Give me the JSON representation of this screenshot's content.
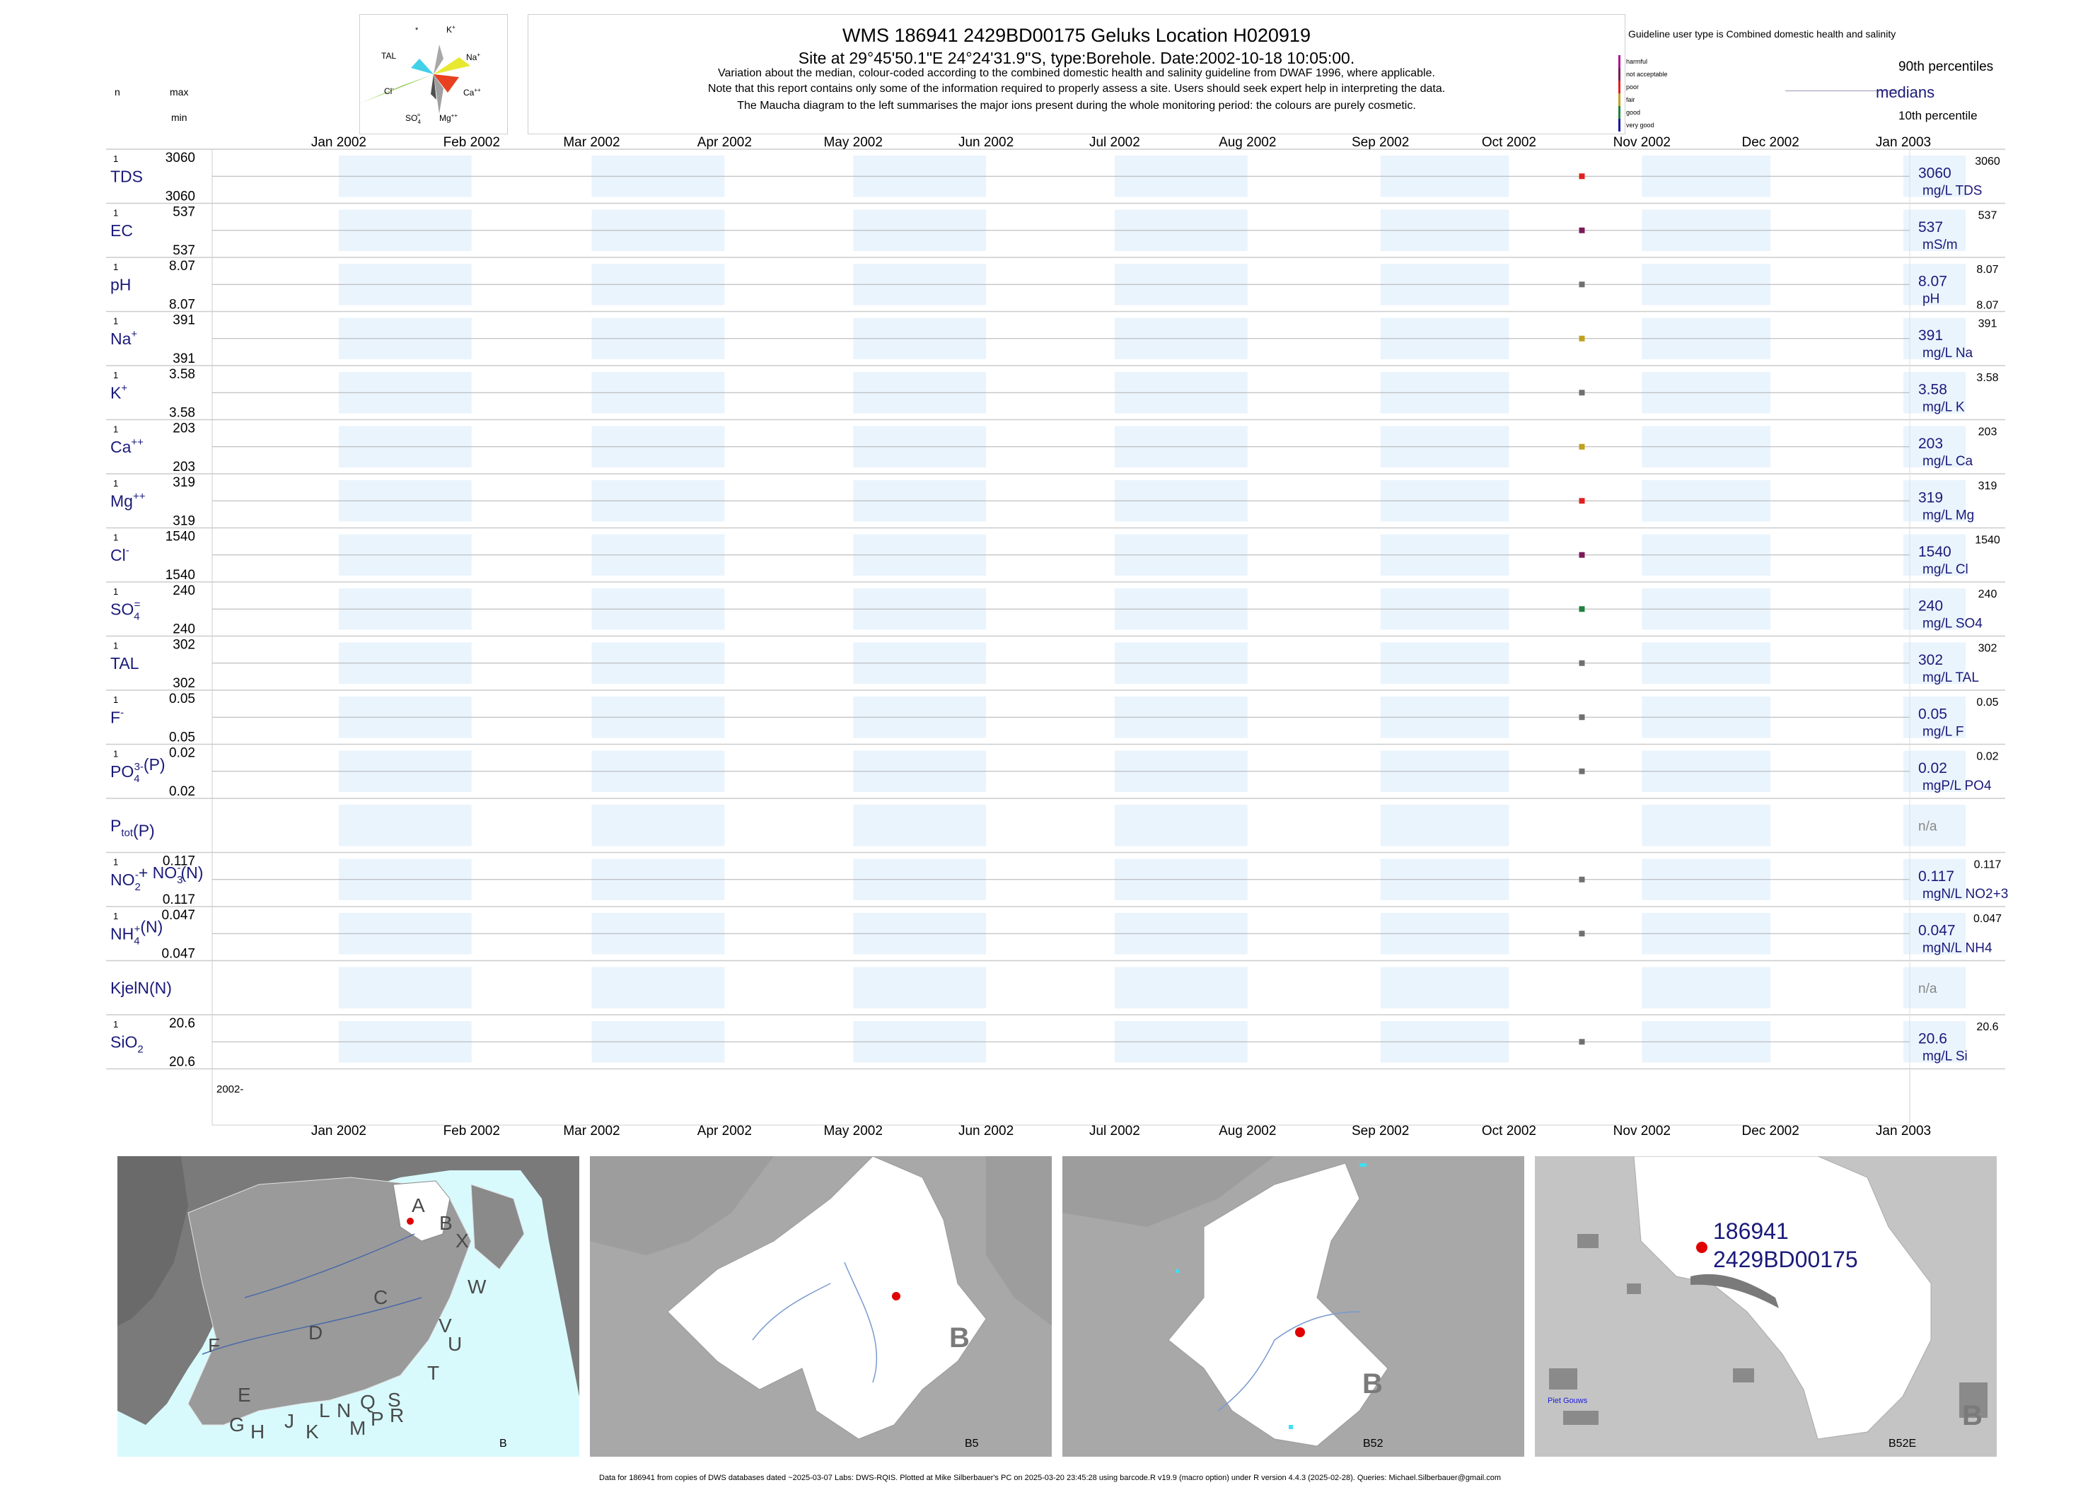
{
  "header": {
    "title": "WMS 186941 2429BD00175 Geluks Location H020919",
    "subtitle": "Site at 29°45'50.1\"E 24°24'31.9\"S, type:Borehole. Date:2002-10-18 10:05:00.",
    "note1": "Variation about the median,  colour-coded according to the combined domestic health and salinity guideline from DWAF 1996, where applicable.",
    "note2": "Note that this report contains only some of the information required to properly assess a site. Users should seek expert help in interpreting the data.",
    "note3": "The Maucha diagram to the left summarises the major ions present during the whole monitoring period: the colours are purely cosmetic."
  },
  "left_legend": {
    "n": "n",
    "max": "max",
    "min": "min"
  },
  "maucha": {
    "labels": {
      "star": "*",
      "k": "K",
      "k_sup": "+",
      "tal": "TAL",
      "na": "Na",
      "na_sup": "+",
      "cl": "Cl",
      "cl_sup": "-",
      "ca": "Ca",
      "ca_sup": "++",
      "so4": "SO",
      "so4_sub": "4",
      "so4_sup": "=",
      "mg": "Mg",
      "mg_sup": "++"
    },
    "colors": {
      "k": "#a8a8a8",
      "na": "#e8e830",
      "ca": "#e84020",
      "mg": "#a0a0a0",
      "so4": "#505050",
      "cl": "#7cc030",
      "tal": "#40d0e8",
      "star": "#b040c0"
    }
  },
  "guideline": {
    "title": "Guideline user type is Combined domestic health and salinity",
    "levels": [
      {
        "label": "harmful",
        "color": "#b01090"
      },
      {
        "label": "not acceptable",
        "color": "#7a1a5a"
      },
      {
        "label": "poor",
        "color": "#e02020"
      },
      {
        "label": "fair",
        "color": "#c0a020"
      },
      {
        "label": "good",
        "color": "#208040"
      },
      {
        "label": "very good",
        "color": "#1818a0"
      }
    ],
    "p90": "90th percentiles",
    "medians": "medians",
    "p10": "10th percentile"
  },
  "chart_data": {
    "type": "scatter",
    "title": "WMS 186941 2429BD00175 Geluks Location H020919",
    "x_axis": {
      "ticks": [
        "Jan 2002",
        "Feb 2002",
        "Mar 2002",
        "Apr 2002",
        "May 2002",
        "Jun 2002",
        "Jul 2002",
        "Aug 2002",
        "Sep 2002",
        "Oct 2002",
        "Nov 2002",
        "Dec 2002",
        "Jan 2003"
      ],
      "range": [
        "2001-12-17",
        "2003-01-17"
      ],
      "bottom_label": "2002-"
    },
    "sample_date": "2002-10-18",
    "series": [
      {
        "name": "TDS",
        "sup": "",
        "sub": "",
        "suffix": "",
        "n": "1",
        "max": "3060",
        "min": "3060",
        "value": 3060,
        "color": "#e02020",
        "right_median": "3060",
        "right_p90": "3060",
        "right_p10": "",
        "unit": "mg/L TDS"
      },
      {
        "name": "EC",
        "sup": "",
        "sub": "",
        "suffix": "",
        "n": "1",
        "max": "537",
        "min": "537",
        "value": 537,
        "color": "#7a1a5a",
        "right_median": "537",
        "right_p90": "537",
        "right_p10": "",
        "unit": "mS/m"
      },
      {
        "name": "pH",
        "sup": "",
        "sub": "",
        "suffix": "",
        "n": "1",
        "max": "8.07",
        "min": "8.07",
        "value": 8.07,
        "color": "#707070",
        "right_median": "8.07",
        "right_p90": "8.07",
        "right_p10": "8.07",
        "unit": "pH"
      },
      {
        "name": "Na",
        "sup": "+",
        "sub": "",
        "suffix": "",
        "n": "1",
        "max": "391",
        "min": "391",
        "value": 391,
        "color": "#c0a020",
        "right_median": "391",
        "right_p90": "391",
        "right_p10": "",
        "unit": "mg/L Na"
      },
      {
        "name": "K",
        "sup": "+",
        "sub": "",
        "suffix": "",
        "n": "1",
        "max": "3.58",
        "min": "3.58",
        "value": 3.58,
        "color": "#707070",
        "right_median": "3.58",
        "right_p90": "3.58",
        "right_p10": "",
        "unit": "mg/L K"
      },
      {
        "name": "Ca",
        "sup": "++",
        "sub": "",
        "suffix": "",
        "n": "1",
        "max": "203",
        "min": "203",
        "value": 203,
        "color": "#c0a020",
        "right_median": "203",
        "right_p90": "203",
        "right_p10": "",
        "unit": "mg/L Ca"
      },
      {
        "name": "Mg",
        "sup": "++",
        "sub": "",
        "suffix": "",
        "n": "1",
        "max": "319",
        "min": "319",
        "value": 319,
        "color": "#e02020",
        "right_median": "319",
        "right_p90": "319",
        "right_p10": "",
        "unit": "mg/L Mg"
      },
      {
        "name": "Cl",
        "sup": "-",
        "sub": "",
        "suffix": "",
        "n": "1",
        "max": "1540",
        "min": "1540",
        "value": 1540,
        "color": "#7a1a5a",
        "right_median": "1540",
        "right_p90": "1540",
        "right_p10": "",
        "unit": "mg/L Cl"
      },
      {
        "name": "SO",
        "sup": "=",
        "sub": "4",
        "suffix": "",
        "n": "1",
        "max": "240",
        "min": "240",
        "value": 240,
        "color": "#208040",
        "right_median": "240",
        "right_p90": "240",
        "right_p10": "",
        "unit": "mg/L SO4"
      },
      {
        "name": "TAL",
        "sup": "",
        "sub": "",
        "suffix": "",
        "n": "1",
        "max": "302",
        "min": "302",
        "value": 302,
        "color": "#707070",
        "right_median": "302",
        "right_p90": "302",
        "right_p10": "",
        "unit": "mg/L TAL"
      },
      {
        "name": "F",
        "sup": "-",
        "sub": "",
        "suffix": "",
        "n": "1",
        "max": "0.05",
        "min": "0.05",
        "value": 0.05,
        "color": "#707070",
        "right_median": "0.05",
        "right_p90": "0.05",
        "right_p10": "",
        "unit": "mg/L F"
      },
      {
        "name": "PO",
        "sup": "3-",
        "sub": "4",
        "suffix": "(P)",
        "n": "1",
        "max": "0.02",
        "min": "0.02",
        "value": 0.02,
        "color": "#707070",
        "right_median": "0.02",
        "right_p90": "0.02",
        "right_p10": "",
        "unit": "mgP/L PO4"
      },
      {
        "name": "P",
        "sup": "",
        "sub": "tot",
        "suffix": "(P)",
        "n": "",
        "max": "",
        "min": "",
        "value": null,
        "color": "#707070",
        "right_median": "",
        "right_p90": "",
        "right_p10": "",
        "unit": "",
        "na": "n/a"
      },
      {
        "name": "NO",
        "sup": "-",
        "sub": "2",
        "suffix": "+ NO",
        "suffix_sup": "-",
        "suffix_sub": "3",
        "suffix2": "(N)",
        "n": "1",
        "max": "0.117",
        "min": "0.117",
        "value": 0.117,
        "color": "#707070",
        "right_median": "0.117",
        "right_p90": "0.117",
        "right_p10": "",
        "unit": "mgN/L NO2+3"
      },
      {
        "name": "NH",
        "sup": "+",
        "sub": "4",
        "suffix": "(N)",
        "n": "1",
        "max": "0.047",
        "min": "0.047",
        "value": 0.047,
        "color": "#707070",
        "right_median": "0.047",
        "right_p90": "0.047",
        "right_p10": "",
        "unit": "mgN/L NH4"
      },
      {
        "name": "KjelN(N)",
        "sup": "",
        "sub": "",
        "suffix": "",
        "n": "",
        "max": "",
        "min": "",
        "value": null,
        "color": "#707070",
        "right_median": "",
        "right_p90": "",
        "right_p10": "",
        "unit": "",
        "na": "n/a"
      },
      {
        "name": "SiO",
        "sup": "",
        "sub": "2",
        "suffix": "",
        "n": "1",
        "max": "20.6",
        "min": "20.6",
        "value": 20.6,
        "color": "#707070",
        "right_median": "20.6",
        "right_p90": "20.6",
        "right_p10": "",
        "unit": "mg/L Si"
      }
    ]
  },
  "maps": {
    "map1": {
      "label": "B",
      "regions": [
        "A",
        "B",
        "X",
        "C",
        "W",
        "D",
        "V",
        "U",
        "F",
        "T",
        "E",
        "L",
        "N",
        "Q",
        "S",
        "G",
        "H",
        "J",
        "K",
        "M",
        "P",
        "R"
      ]
    },
    "map2": {
      "label": "B5",
      "big": "B"
    },
    "map3": {
      "label": "B52",
      "big": "B"
    },
    "map4": {
      "label": "B52E",
      "big": "B",
      "site_id": "186941",
      "site_code": "2429BD00175",
      "place": "Piet Gouws"
    }
  },
  "footer": "Data for 186941 from copies of DWS databases dated ~2025-03-07 Labs: DWS-RQIS. Plotted at Mike Silberbauer's PC on 2025-03-20 23:45:28 using barcode.R v19.9 (macro option) under R version 4.4.3 (2025-02-28). Queries: Michael.Silberbauer@gmail.com"
}
